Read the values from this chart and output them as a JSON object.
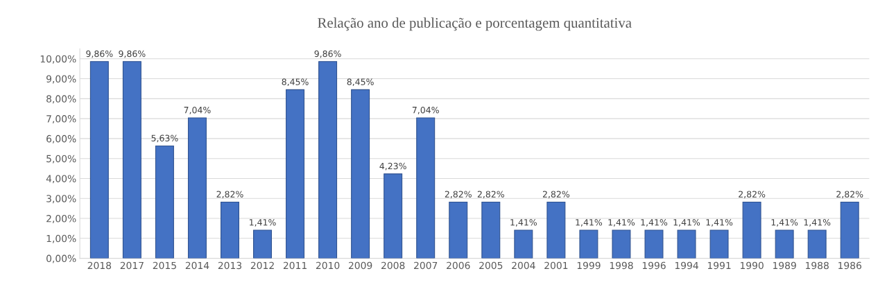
{
  "chart_data": {
    "type": "bar",
    "title": "Relação ano de publicação e porcentagem quantitativa",
    "categories": [
      "2018",
      "2017",
      "2015",
      "2014",
      "2013",
      "2012",
      "2011",
      "2010",
      "2009",
      "2008",
      "2007",
      "2006",
      "2005",
      "2004",
      "2001",
      "1999",
      "1998",
      "1996",
      "1994",
      "1991",
      "1990",
      "1989",
      "1988",
      "1986"
    ],
    "values": [
      9.86,
      9.86,
      5.63,
      7.04,
      2.82,
      1.41,
      8.45,
      9.86,
      8.45,
      4.23,
      7.04,
      2.82,
      2.82,
      1.41,
      2.82,
      1.41,
      1.41,
      1.41,
      1.41,
      1.41,
      2.82,
      1.41,
      1.41,
      2.82
    ],
    "value_labels": [
      "9,86%",
      "9,86%",
      "5,63%",
      "7,04%",
      "2,82%",
      "1,41%",
      "8,45%",
      "9,86%",
      "8,45%",
      "4,23%",
      "7,04%",
      "2,82%",
      "2,82%",
      "1,41%",
      "2,82%",
      "1,41%",
      "1,41%",
      "1,41%",
      "1,41%",
      "1,41%",
      "2,82%",
      "1,41%",
      "1,41%",
      "2,82%"
    ],
    "color": "#4472c4",
    "ylim": [
      0,
      10.5
    ],
    "yticks": [
      {
        "value": 0,
        "label": "0,00%"
      },
      {
        "value": 1,
        "label": "1,00%"
      },
      {
        "value": 2,
        "label": "2,00%"
      },
      {
        "value": 3,
        "label": "3,00%"
      },
      {
        "value": 4,
        "label": "4,00%"
      },
      {
        "value": 5,
        "label": "5,00%"
      },
      {
        "value": 6,
        "label": "6,00%"
      },
      {
        "value": 7,
        "label": "7,00%"
      },
      {
        "value": 8,
        "label": "8,00%"
      },
      {
        "value": 9,
        "label": "9,00%"
      },
      {
        "value": 10,
        "label": "10,00%"
      }
    ],
    "grid": "y",
    "legend": false
  }
}
